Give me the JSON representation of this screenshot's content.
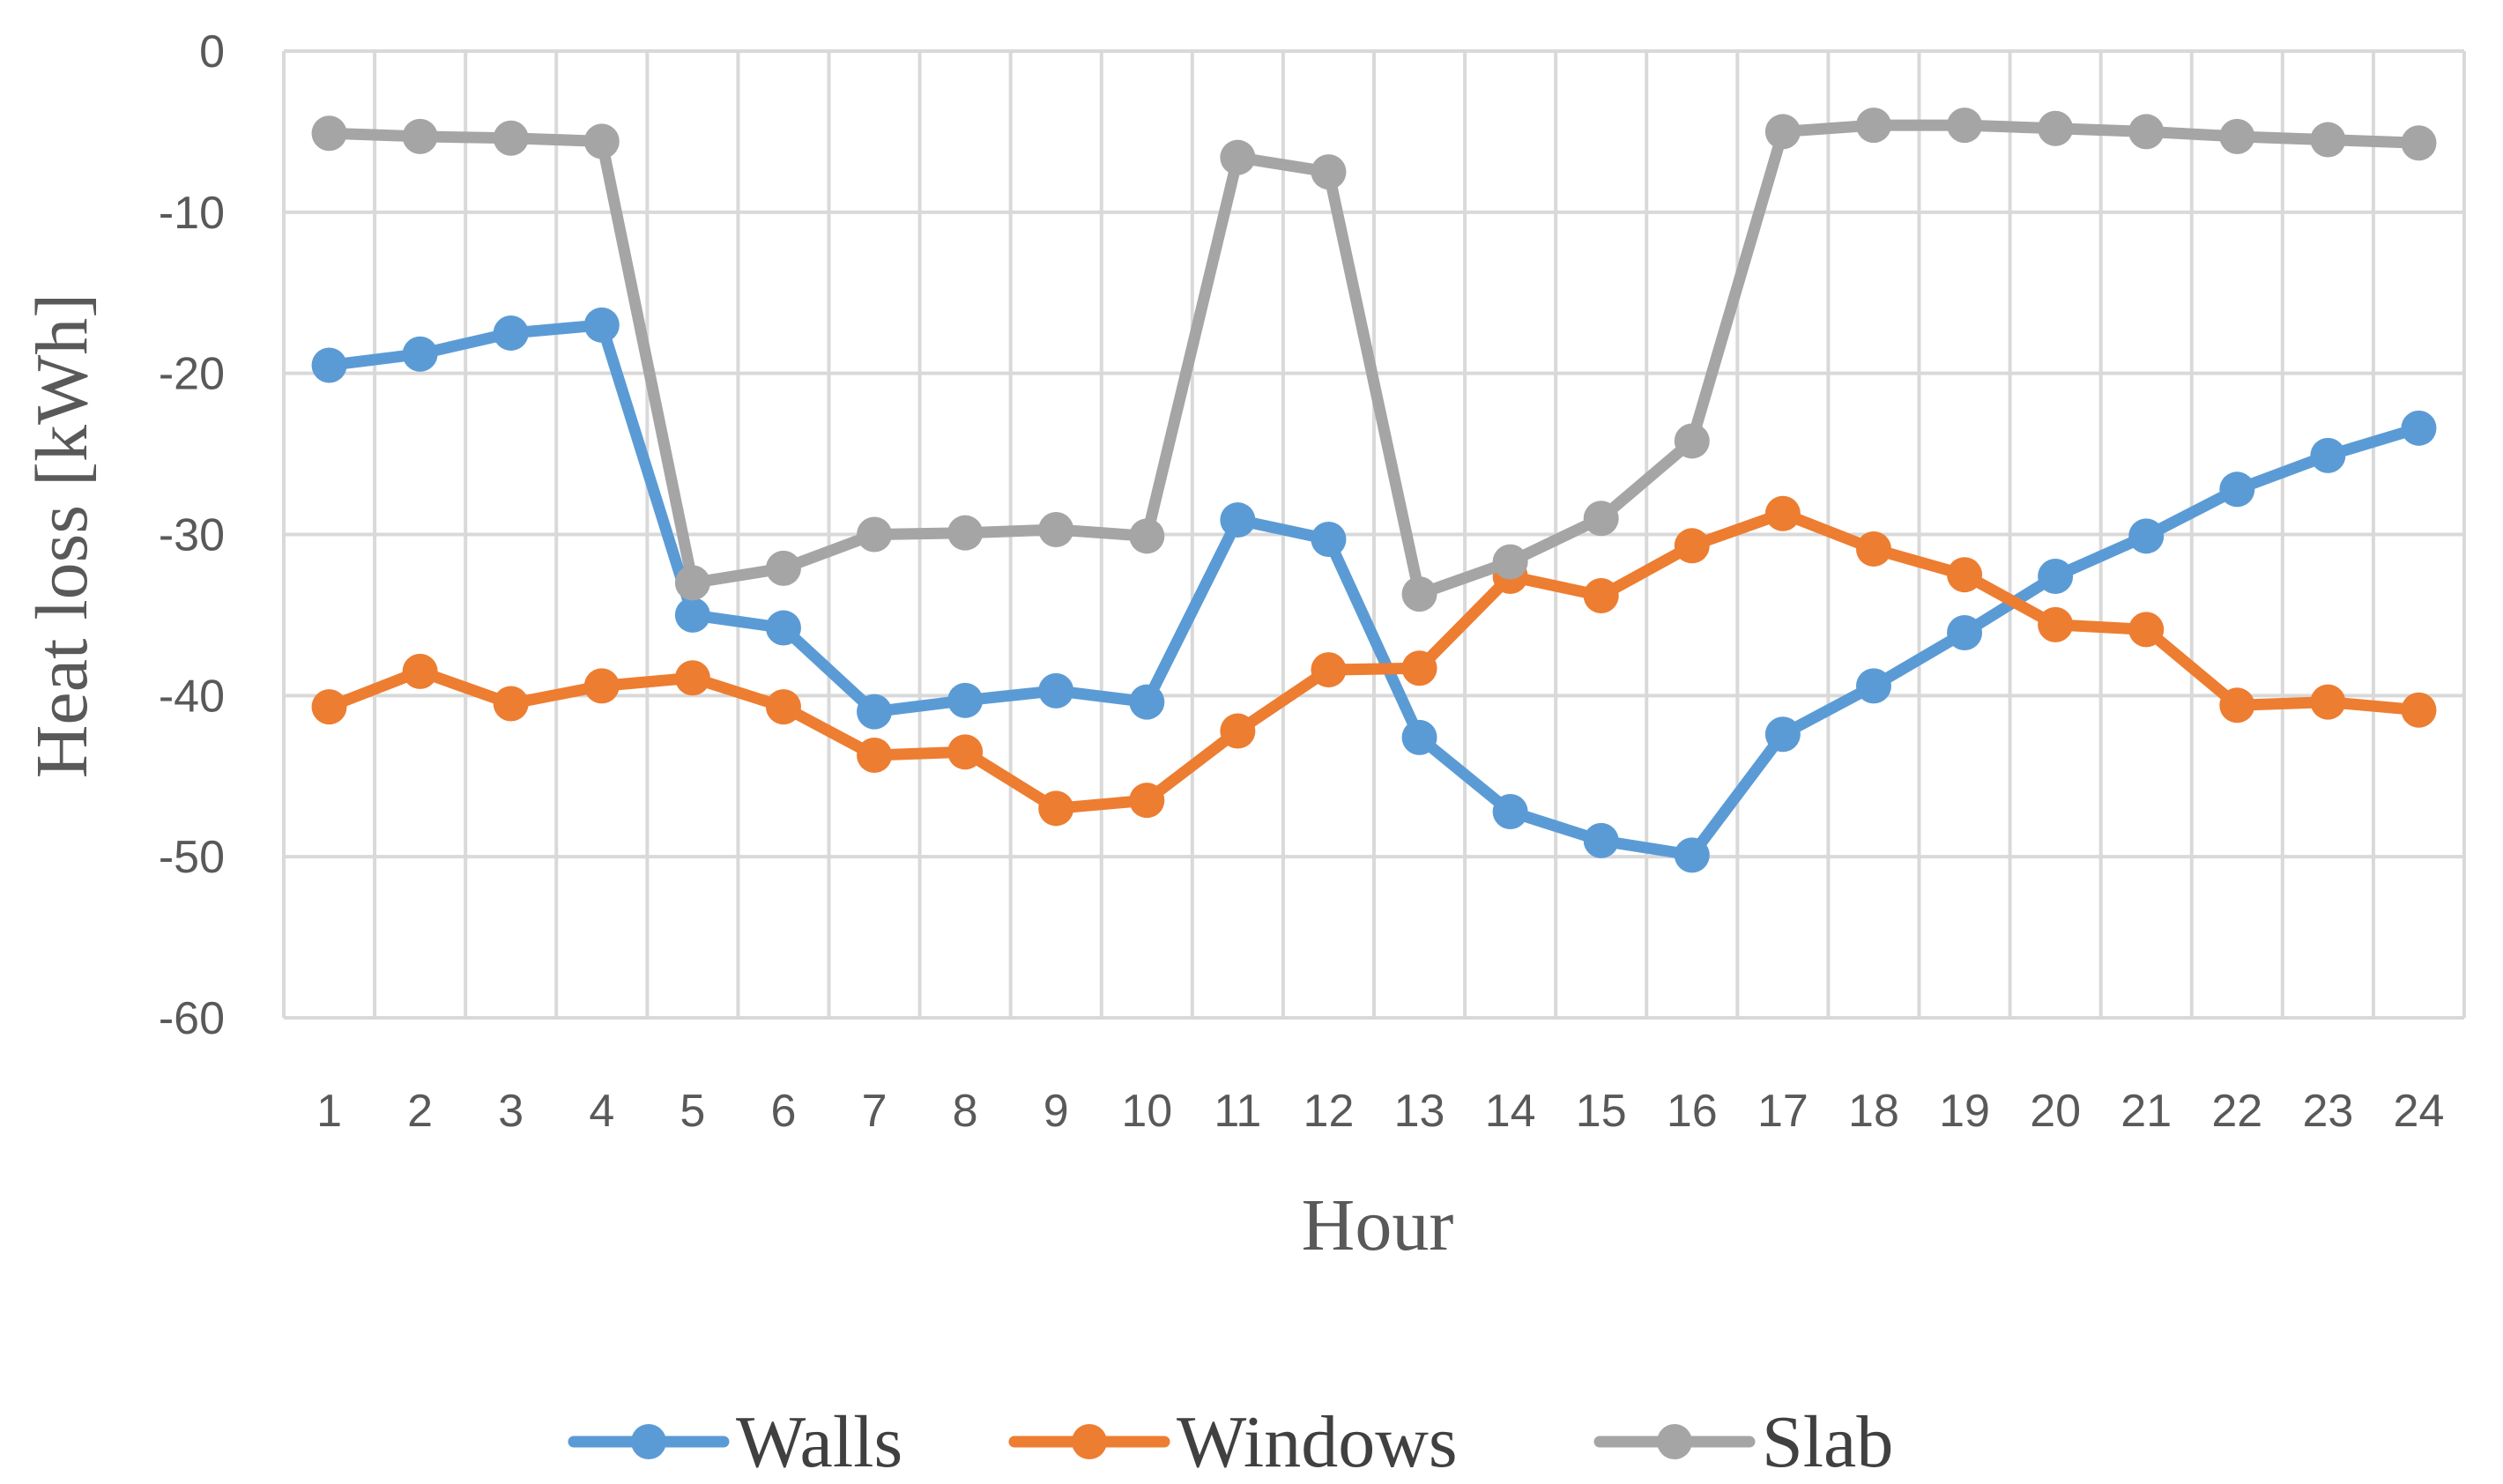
{
  "chart_data": {
    "type": "line",
    "title": "",
    "xlabel": "Hour",
    "ylabel": "Heat loss [kWh]",
    "categories": [
      "1",
      "2",
      "3",
      "4",
      "5",
      "6",
      "7",
      "8",
      "9",
      "10",
      "11",
      "12",
      "13",
      "14",
      "15",
      "16",
      "17",
      "18",
      "19",
      "20",
      "21",
      "22",
      "23",
      "24"
    ],
    "y_ticks": [
      "0",
      "-10",
      "-20",
      "-30",
      "-40",
      "-50",
      "-60"
    ],
    "ylim": [
      -60,
      0
    ],
    "grid": true,
    "legend_position": "bottom",
    "series": [
      {
        "name": "Walls",
        "color": "#5B9BD5",
        "values": [
          -19.5,
          -18.8,
          -17.5,
          -17.0,
          -35.0,
          -35.8,
          -41.0,
          -40.3,
          -39.7,
          -40.4,
          -29.1,
          -30.3,
          -42.6,
          -47.2,
          -49.0,
          -49.9,
          -42.4,
          -39.4,
          -36.1,
          -32.6,
          -30.1,
          -27.2,
          -25.1,
          -23.4
        ]
      },
      {
        "name": "Windows",
        "color": "#ED7D31",
        "values": [
          -40.7,
          -38.5,
          -40.5,
          -39.4,
          -38.9,
          -40.7,
          -43.7,
          -43.5,
          -47.0,
          -46.5,
          -42.2,
          -38.4,
          -38.3,
          -32.6,
          -33.8,
          -30.7,
          -28.7,
          -30.9,
          -32.5,
          -35.6,
          -35.9,
          -40.6,
          -40.4,
          -40.9
        ]
      },
      {
        "name": "Slab",
        "color": "#A5A5A5",
        "values": [
          -5.1,
          -5.3,
          -5.4,
          -5.6,
          -33.0,
          -32.1,
          -30.0,
          -29.9,
          -29.7,
          -30.1,
          -6.6,
          -7.5,
          -33.7,
          -31.7,
          -29.0,
          -24.2,
          -5.0,
          -4.6,
          -4.6,
          -4.8,
          -5.0,
          -5.3,
          -5.5,
          -5.7
        ]
      }
    ]
  }
}
